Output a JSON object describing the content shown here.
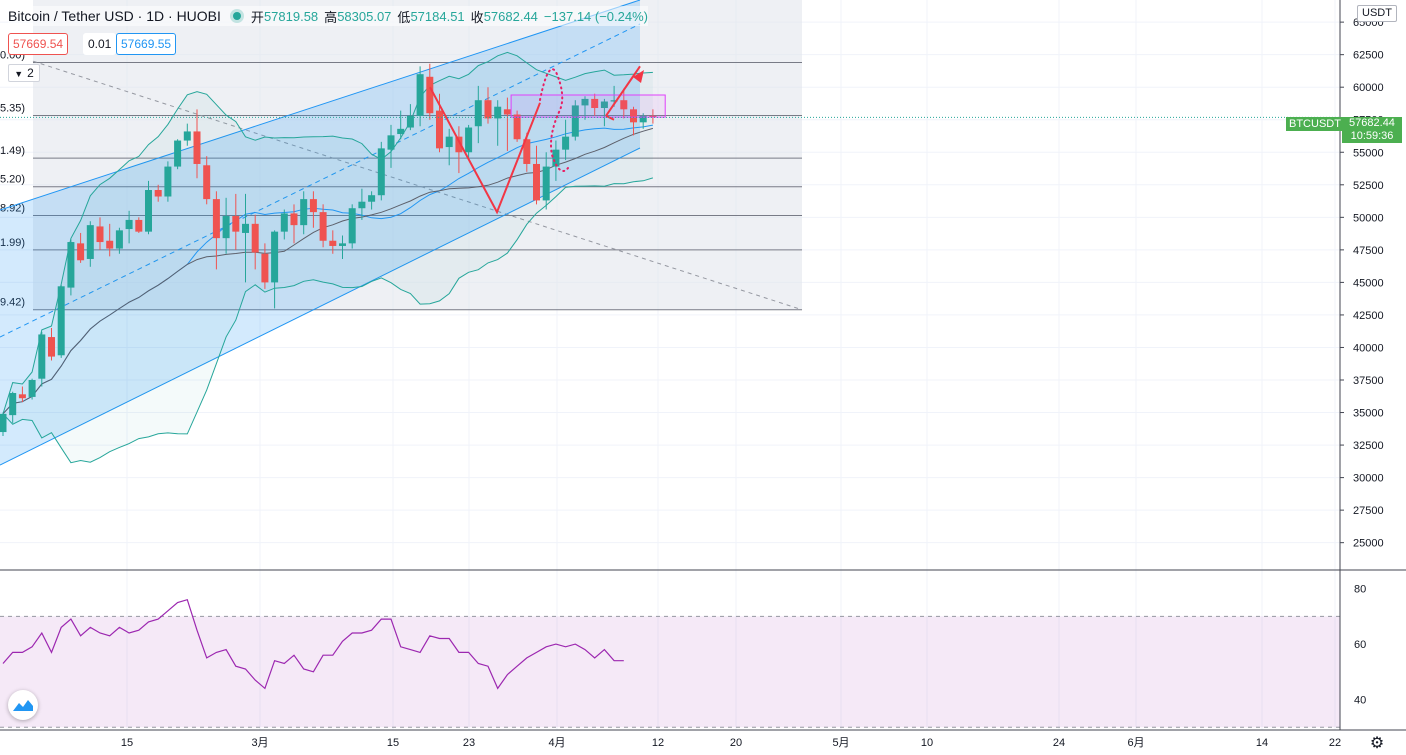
{
  "header": {
    "symbol": "Bitcoin / Tether USD · 1D · HUOBI",
    "open_label": "开",
    "open": "57819.58",
    "high_label": "高",
    "high": "58305.07",
    "low_label": "低",
    "low": "57184.51",
    "close_label": "收",
    "close": "57682.44",
    "change": "−137.14 (−0.24%)"
  },
  "quote": {
    "bid": "57669.54",
    "spread": "0.01",
    "ask": "57669.55"
  },
  "indicator_collapse": "2",
  "currency_button": "USDT",
  "last_price": {
    "symbol_label": "BTCUSDT",
    "price": "57682.44",
    "countdown": "10:59:36"
  },
  "colors": {
    "up": "#26a69a",
    "down": "#ef5350",
    "channel": "#2196f3",
    "rsi": "#9c27b0",
    "arrow": "#f23645"
  },
  "chart_data": {
    "type": "candlestick",
    "price_axis": {
      "ticks": [
        65000,
        62500,
        60000,
        57500,
        55000,
        52500,
        50000,
        47500,
        45000,
        42500,
        40000,
        37500,
        35000,
        32500,
        30000,
        27500,
        25000
      ],
      "range": [
        22900,
        66700
      ]
    },
    "time_axis": {
      "labels": [
        "15",
        "3月",
        "15",
        "23",
        "4月",
        "12",
        "20",
        "5月",
        "10",
        "24",
        "6月",
        "14",
        "22"
      ]
    },
    "fib_levels": [
      {
        "label": "0.00)",
        "price": 61900
      },
      {
        "label": "5.35)",
        "price": 57820
      },
      {
        "label": "1.49)",
        "price": 54550
      },
      {
        "label": "5.20)",
        "price": 52350
      },
      {
        "label": "8.92)",
        "price": 50140
      },
      {
        "label": "1.99)",
        "price": 47500
      },
      {
        "label": "9.42)",
        "price": 42900
      }
    ],
    "candles": [
      [
        33500,
        35000,
        33200,
        34900
      ],
      [
        34800,
        36600,
        34200,
        36500
      ],
      [
        36400,
        37000,
        35800,
        36100
      ],
      [
        36200,
        37600,
        36000,
        37500
      ],
      [
        37600,
        41200,
        37000,
        41000
      ],
      [
        40800,
        41500,
        39000,
        39300
      ],
      [
        39400,
        44800,
        39200,
        44700
      ],
      [
        44600,
        48300,
        44000,
        48100
      ],
      [
        48000,
        48800,
        46500,
        46700
      ],
      [
        46800,
        49700,
        46200,
        49400
      ],
      [
        49300,
        50000,
        47500,
        48100
      ],
      [
        48200,
        49500,
        47000,
        47600
      ],
      [
        47600,
        49200,
        47200,
        49000
      ],
      [
        49100,
        50500,
        48000,
        49800
      ],
      [
        49800,
        50000,
        48800,
        48900
      ],
      [
        48900,
        52800,
        48700,
        52100
      ],
      [
        52100,
        52500,
        51200,
        51600
      ],
      [
        51600,
        54300,
        51200,
        53900
      ],
      [
        53900,
        56000,
        53700,
        55900
      ],
      [
        55900,
        57200,
        55500,
        56600
      ],
      [
        56600,
        58300,
        53000,
        54100
      ],
      [
        54000,
        54700,
        51000,
        51400
      ],
      [
        51400,
        52000,
        46000,
        48400
      ],
      [
        48400,
        51500,
        47200,
        50100
      ],
      [
        50100,
        51800,
        47500,
        48900
      ],
      [
        48800,
        51800,
        45000,
        49500
      ],
      [
        49500,
        50200,
        46000,
        47300
      ],
      [
        47200,
        48000,
        44500,
        45000
      ],
      [
        45000,
        49000,
        43000,
        48900
      ],
      [
        48900,
        50600,
        48300,
        50300
      ],
      [
        50300,
        51000,
        48000,
        49400
      ],
      [
        49400,
        52000,
        48700,
        51400
      ],
      [
        51400,
        52000,
        49200,
        50400
      ],
      [
        50400,
        51000,
        47700,
        48200
      ],
      [
        48200,
        49000,
        47200,
        47800
      ],
      [
        47800,
        48600,
        46800,
        48000
      ],
      [
        48000,
        51000,
        47600,
        50700
      ],
      [
        50700,
        52200,
        49800,
        51200
      ],
      [
        51200,
        52000,
        50600,
        51700
      ],
      [
        51700,
        55800,
        51300,
        55300
      ],
      [
        55200,
        57100,
        53800,
        56300
      ],
      [
        56400,
        58200,
        56000,
        56800
      ],
      [
        56900,
        58700,
        56700,
        57800
      ],
      [
        57800,
        61600,
        57000,
        61000
      ],
      [
        60800,
        61800,
        57500,
        58000
      ],
      [
        58200,
        59500,
        55000,
        55300
      ],
      [
        55400,
        56800,
        54000,
        56200
      ],
      [
        56200,
        57000,
        53400,
        55000
      ],
      [
        55000,
        57100,
        54600,
        56900
      ],
      [
        57000,
        60100,
        55700,
        59000
      ],
      [
        59000,
        60000,
        57200,
        57600
      ],
      [
        57600,
        59000,
        55500,
        58500
      ],
      [
        58300,
        59200,
        55100,
        57900
      ],
      [
        57900,
        58200,
        55800,
        56000
      ],
      [
        56000,
        56500,
        53500,
        54100
      ],
      [
        54100,
        55500,
        51000,
        51300
      ],
      [
        51300,
        55000,
        50600,
        53900
      ],
      [
        53900,
        55900,
        52800,
        55200
      ],
      [
        55200,
        57500,
        54400,
        56200
      ],
      [
        56200,
        59000,
        55900,
        58600
      ],
      [
        58600,
        59300,
        57500,
        59100
      ],
      [
        59100,
        59500,
        57800,
        58400
      ],
      [
        58400,
        59100,
        57000,
        58900
      ],
      [
        58900,
        60100,
        58500,
        59000
      ],
      [
        59000,
        59900,
        57600,
        58300
      ],
      [
        58300,
        58500,
        56300,
        57300
      ],
      [
        57300,
        58000,
        56800,
        57800
      ],
      [
        57800,
        58300,
        57200,
        57700
      ]
    ],
    "rsi": {
      "levels": [
        70,
        30
      ],
      "ticks": [
        80,
        60,
        40
      ],
      "values": [
        53,
        57,
        57,
        59,
        64,
        57,
        66,
        69,
        63,
        66,
        64,
        63,
        66,
        64,
        65,
        68,
        69,
        72,
        75,
        76,
        65,
        55,
        57,
        58,
        52,
        51,
        47,
        44,
        54,
        53,
        56,
        51,
        50,
        56,
        56,
        61,
        64,
        64,
        65,
        69,
        69,
        59,
        58,
        57,
        63,
        62,
        62,
        57,
        57,
        53,
        52,
        44,
        49,
        52,
        55,
        57,
        59,
        60,
        59,
        60,
        58,
        55,
        58,
        54,
        54
      ]
    }
  }
}
